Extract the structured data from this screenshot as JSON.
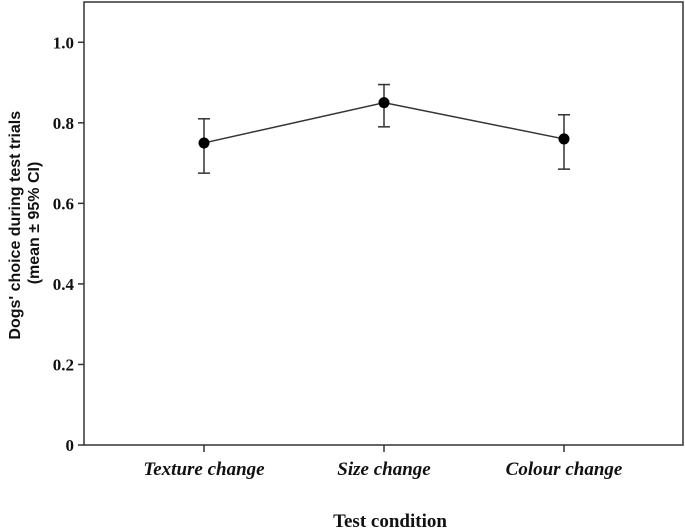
{
  "chart_data": {
    "type": "line",
    "categories": [
      "Texture change",
      "Size change",
      "Colour change"
    ],
    "series": [
      {
        "values": [
          0.75,
          0.85,
          0.76
        ],
        "ci_lower": [
          0.675,
          0.79,
          0.685
        ],
        "ci_upper": [
          0.81,
          0.895,
          0.82
        ]
      }
    ],
    "xlabel": "Test condition",
    "ylabel_lines": [
      "Dogs' choice during test trials",
      "(mean ± 95% CI)"
    ],
    "yticks": [
      "0",
      "0.2",
      "0.4",
      "0.6",
      "0.8",
      "1.0"
    ],
    "ylim": [
      0,
      1.1
    ],
    "grid": false,
    "legend": "none",
    "colors": {
      "line": "#333333",
      "marker": "#000000",
      "axis": "#333333"
    }
  }
}
